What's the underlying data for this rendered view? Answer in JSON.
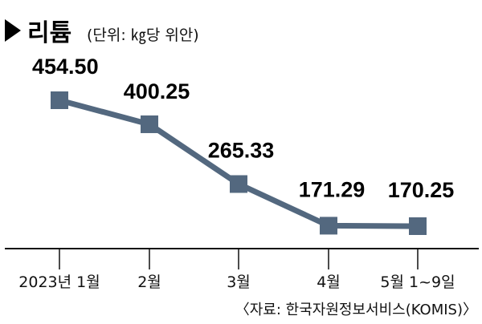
{
  "header": {
    "title": "리튬",
    "unit": "(단위: ㎏당 위안)"
  },
  "source": "〈자료: 한국자원정보서비스(KOMIS)〉",
  "colors": {
    "line": "#53687f",
    "marker": "#53687f",
    "axis": "#111111",
    "text": "#000000"
  },
  "chart_data": {
    "type": "line",
    "title": "리튬",
    "subtitle": "(단위: ㎏당 위안)",
    "categories": [
      "2023년 1월",
      "2월",
      "3월",
      "4월",
      "5월 1~9일"
    ],
    "values": [
      454.5,
      400.25,
      265.33,
      171.29,
      170.25
    ],
    "data_labels": [
      "454.50",
      "400.25",
      "265.33",
      "171.29",
      "170.25"
    ],
    "ylim": [
      150,
      470
    ],
    "grid": false,
    "legend": "none"
  }
}
